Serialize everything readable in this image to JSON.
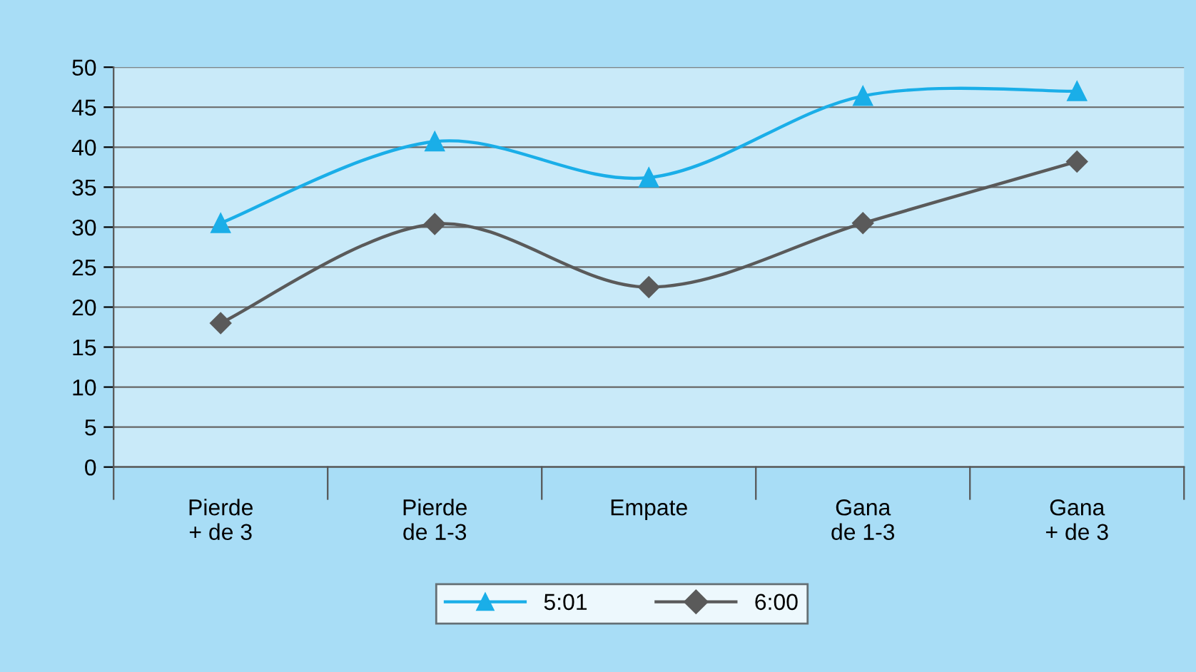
{
  "chart_data": {
    "type": "line",
    "categories": [
      "Pierde\n+ de 3",
      "Pierde\nde 1-3",
      "Empate",
      "Gana\nde 1-3",
      "Gana\n+ de 3"
    ],
    "series": [
      {
        "name": "5:01",
        "color": "#1aaee8",
        "marker": "triangle",
        "values": [
          30.5,
          40.7,
          36.2,
          46.4,
          47
        ]
      },
      {
        "name": "6:00",
        "color": "#5a5a5a",
        "marker": "diamond",
        "values": [
          18,
          30.4,
          22.5,
          30.5,
          38.2
        ]
      }
    ],
    "ylim": [
      0,
      50
    ],
    "yticks": [
      0,
      5,
      10,
      15,
      20,
      25,
      30,
      35,
      40,
      45,
      50
    ],
    "grid": "y",
    "legend": "bottom",
    "line_style": "solid"
  }
}
